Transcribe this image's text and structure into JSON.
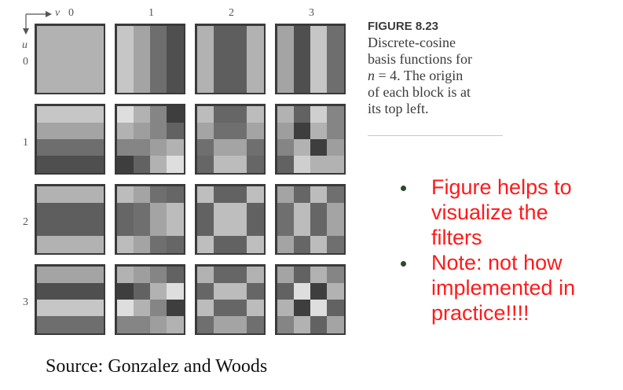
{
  "figure": {
    "axis_v_label": "v",
    "axis_u_label": "u",
    "col_labels": [
      "0",
      "1",
      "2",
      "3"
    ],
    "row_labels": [
      "0",
      "1",
      "2",
      "3"
    ],
    "basis_n": 4,
    "blocks": [
      [
        [
          [
            178,
            178,
            178,
            178
          ],
          [
            178,
            178,
            178,
            178
          ],
          [
            178,
            178,
            178,
            178
          ],
          [
            178,
            178,
            178,
            178
          ]
        ],
        [
          [
            198,
            164,
            110,
            79
          ],
          [
            198,
            164,
            110,
            79
          ],
          [
            198,
            164,
            110,
            79
          ],
          [
            198,
            164,
            110,
            79
          ]
        ],
        [
          [
            178,
            94,
            94,
            178
          ],
          [
            178,
            94,
            94,
            178
          ],
          [
            178,
            94,
            94,
            178
          ],
          [
            178,
            94,
            94,
            178
          ]
        ],
        [
          [
            164,
            79,
            198,
            110
          ],
          [
            164,
            79,
            198,
            110
          ],
          [
            164,
            79,
            198,
            110
          ],
          [
            164,
            79,
            198,
            110
          ]
        ]
      ],
      [
        [
          [
            198,
            198,
            198,
            198
          ],
          [
            164,
            164,
            164,
            164
          ],
          [
            110,
            110,
            110,
            110
          ],
          [
            79,
            79,
            79,
            79
          ]
        ],
        [
          [
            222,
            178,
            133,
            62
          ],
          [
            178,
            158,
            133,
            98
          ],
          [
            133,
            133,
            158,
            178
          ],
          [
            62,
            98,
            178,
            222
          ]
        ],
        [
          [
            188,
            102,
            102,
            188
          ],
          [
            164,
            111,
            111,
            164
          ],
          [
            111,
            164,
            164,
            111
          ],
          [
            102,
            188,
            188,
            102
          ]
        ],
        [
          [
            178,
            98,
            207,
            133
          ],
          [
            158,
            62,
            178,
            133
          ],
          [
            133,
            178,
            62,
            158
          ],
          [
            98,
            207,
            178,
            178
          ]
        ]
      ],
      [
        [
          [
            178,
            178,
            178,
            178
          ],
          [
            94,
            94,
            94,
            94
          ],
          [
            94,
            94,
            94,
            94
          ],
          [
            178,
            178,
            178,
            178
          ]
        ],
        [
          [
            188,
            164,
            111,
            102
          ],
          [
            102,
            111,
            164,
            188
          ],
          [
            102,
            111,
            164,
            188
          ],
          [
            188,
            164,
            111,
            102
          ]
        ],
        [
          [
            190,
            98,
            98,
            190
          ],
          [
            98,
            190,
            190,
            98
          ],
          [
            98,
            190,
            190,
            98
          ],
          [
            190,
            98,
            98,
            190
          ]
        ],
        [
          [
            164,
            102,
            188,
            111
          ],
          [
            111,
            188,
            102,
            164
          ],
          [
            111,
            188,
            102,
            164
          ],
          [
            164,
            102,
            188,
            111
          ]
        ]
      ],
      [
        [
          [
            164,
            164,
            164,
            164
          ],
          [
            79,
            79,
            79,
            79
          ],
          [
            198,
            198,
            198,
            198
          ],
          [
            110,
            110,
            110,
            110
          ]
        ],
        [
          [
            178,
            158,
            133,
            98
          ],
          [
            62,
            98,
            178,
            222
          ],
          [
            222,
            178,
            133,
            62
          ],
          [
            133,
            133,
            158,
            178
          ]
        ],
        [
          [
            178,
            102,
            102,
            178
          ],
          [
            102,
            188,
            188,
            102
          ],
          [
            188,
            102,
            102,
            188
          ],
          [
            111,
            164,
            164,
            111
          ]
        ],
        [
          [
            164,
            98,
            178,
            133
          ],
          [
            98,
            222,
            62,
            178
          ],
          [
            178,
            62,
            222,
            98
          ],
          [
            133,
            178,
            98,
            164
          ]
        ]
      ]
    ]
  },
  "caption": {
    "title": "FIGURE 8.23",
    "line1": "Discrete-cosine",
    "line2": "basis functions for",
    "line3_var": "n",
    "line3_rest": " = 4. The origin",
    "line4": "of each block is at",
    "line5": "its top left."
  },
  "bullets": [
    {
      "lines": [
        "Figure helps to",
        "visualize the",
        "filters"
      ]
    },
    {
      "lines": [
        "Note: not how",
        "implemented in",
        "practice!!!!"
      ]
    }
  ],
  "source": "Source: Gonzalez and Woods"
}
